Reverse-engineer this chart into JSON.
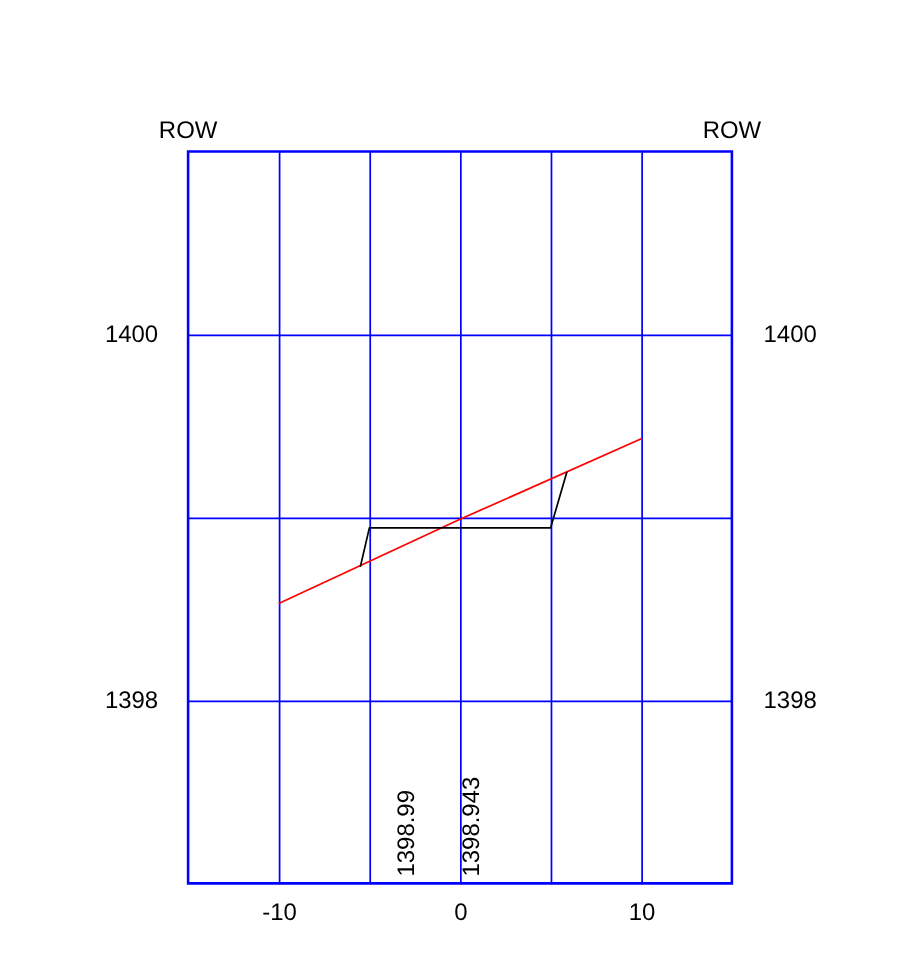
{
  "chart_data": {
    "type": "line",
    "annotations": [
      "ROW",
      "ROW",
      "1398.99",
      "1398.943"
    ],
    "series": [
      {
        "color": "#ff0000",
        "x": [
          -10,
          0,
          10
        ],
        "values": [
          1398.53,
          1398.99,
          1399.43
        ]
      },
      {
        "color": "#000000",
        "x": [
          -5.5,
          -5,
          5,
          5.9
        ],
        "values": [
          1398.73,
          1398.943,
          1398.943,
          1399.25
        ]
      }
    ],
    "xlim": [
      -15,
      15
    ],
    "xticks": [
      -10,
      {
        "value": -5,
        "label": null
      },
      0,
      {
        "value": 5,
        "label": null
      },
      10
    ],
    "ylim": [
      1397,
      1401
    ],
    "yticks": [
      1398,
      {
        "value": 1399,
        "label": null
      },
      1400
    ],
    "y2lim": [
      1397,
      1401
    ],
    "y2ticks": [
      1398,
      {
        "value": 1399,
        "label": null
      },
      1400
    ],
    "grid": true,
    "marker": "none",
    "line_style": "solid"
  }
}
